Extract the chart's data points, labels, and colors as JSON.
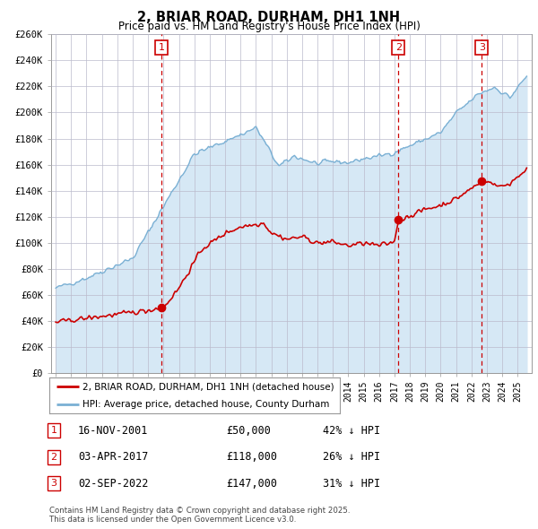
{
  "title": "2, BRIAR ROAD, DURHAM, DH1 1NH",
  "subtitle": "Price paid vs. HM Land Registry's House Price Index (HPI)",
  "ylim": [
    0,
    260000
  ],
  "yticks": [
    0,
    20000,
    40000,
    60000,
    80000,
    100000,
    120000,
    140000,
    160000,
    180000,
    200000,
    220000,
    240000,
    260000
  ],
  "ytick_labels": [
    "£0",
    "£20K",
    "£40K",
    "£60K",
    "£80K",
    "£100K",
    "£120K",
    "£140K",
    "£160K",
    "£180K",
    "£200K",
    "£220K",
    "£240K",
    "£260K"
  ],
  "sale_color": "#cc0000",
  "hpi_color": "#7ab0d4",
  "hpi_fill_color": "#d6e8f5",
  "vline_color": "#cc0000",
  "sales": [
    {
      "date_num": 2001.88,
      "price": 50000,
      "label": "1"
    },
    {
      "date_num": 2017.25,
      "price": 118000,
      "label": "2"
    },
    {
      "date_num": 2022.67,
      "price": 147000,
      "label": "3"
    }
  ],
  "legend_sale_label": "2, BRIAR ROAD, DURHAM, DH1 1NH (detached house)",
  "legend_hpi_label": "HPI: Average price, detached house, County Durham",
  "footer": "Contains HM Land Registry data © Crown copyright and database right 2025.\nThis data is licensed under the Open Government Licence v3.0.",
  "table_rows": [
    {
      "num": "1",
      "date": "16-NOV-2001",
      "price": "£50,000",
      "pct": "42% ↓ HPI"
    },
    {
      "num": "2",
      "date": "03-APR-2017",
      "price": "£118,000",
      "pct": "26% ↓ HPI"
    },
    {
      "num": "3",
      "date": "02-SEP-2022",
      "price": "£147,000",
      "pct": "31% ↓ HPI"
    }
  ],
  "background_color": "#ffffff",
  "grid_color": "#bbbbcc",
  "xlim_left": 1994.7,
  "xlim_right": 2025.9
}
